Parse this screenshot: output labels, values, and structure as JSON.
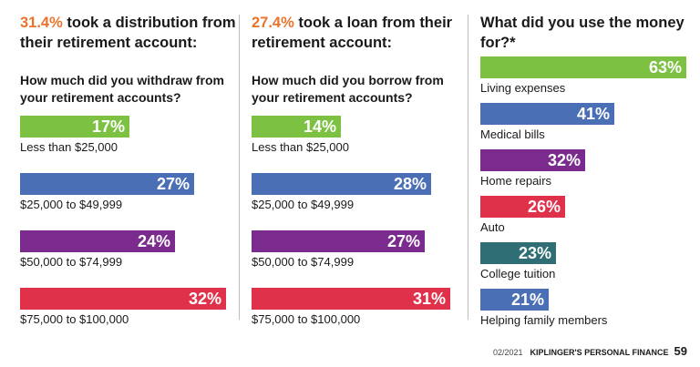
{
  "chart_data": [
    {
      "type": "bar",
      "title_highlight": "31.4%",
      "title": "took a distribution from their retirement account:",
      "question": "How much did you withdraw from your retirement accounts?",
      "categories": [
        "Less than $25,000",
        "$25,000 to $49,999",
        "$50,000 to $74,999",
        "$75,000 to $100,000"
      ],
      "values": [
        17,
        27,
        24,
        32
      ],
      "value_labels": [
        "17%",
        "27%",
        "24%",
        "32%"
      ],
      "colors": [
        "#7cc142",
        "#4a6fb5",
        "#7a2b8d",
        "#e0314b"
      ],
      "xlim": [
        0,
        32
      ]
    },
    {
      "type": "bar",
      "title_highlight": "27.4%",
      "title": "took a loan from their retirement account:",
      "question": "How much did you borrow from your retirement accounts?",
      "categories": [
        "Less than $25,000",
        "$25,000 to $49,999",
        "$50,000 to $74,999",
        "$75,000 to $100,000"
      ],
      "values": [
        14,
        28,
        27,
        31
      ],
      "value_labels": [
        "14%",
        "28%",
        "27%",
        "31%"
      ],
      "colors": [
        "#7cc142",
        "#4a6fb5",
        "#7a2b8d",
        "#e0314b"
      ],
      "xlim": [
        0,
        31
      ]
    },
    {
      "type": "bar",
      "title": "What did you use the money for?*",
      "categories": [
        "Living expenses",
        "Medical bills",
        "Home repairs",
        "Auto",
        "College tuition",
        "Helping family members"
      ],
      "values": [
        63,
        41,
        32,
        26,
        23,
        21
      ],
      "value_labels": [
        "63%",
        "41%",
        "32%",
        "26%",
        "23%",
        "21%"
      ],
      "colors": [
        "#7cc142",
        "#4a6fb5",
        "#7a2b8d",
        "#e0314b",
        "#2e6e74",
        "#4a6fb5"
      ],
      "xlim": [
        0,
        63
      ]
    }
  ],
  "footer": {
    "date": "02/2021",
    "publication": "KIPLINGER'S PERSONAL FINANCE",
    "page": "59"
  }
}
